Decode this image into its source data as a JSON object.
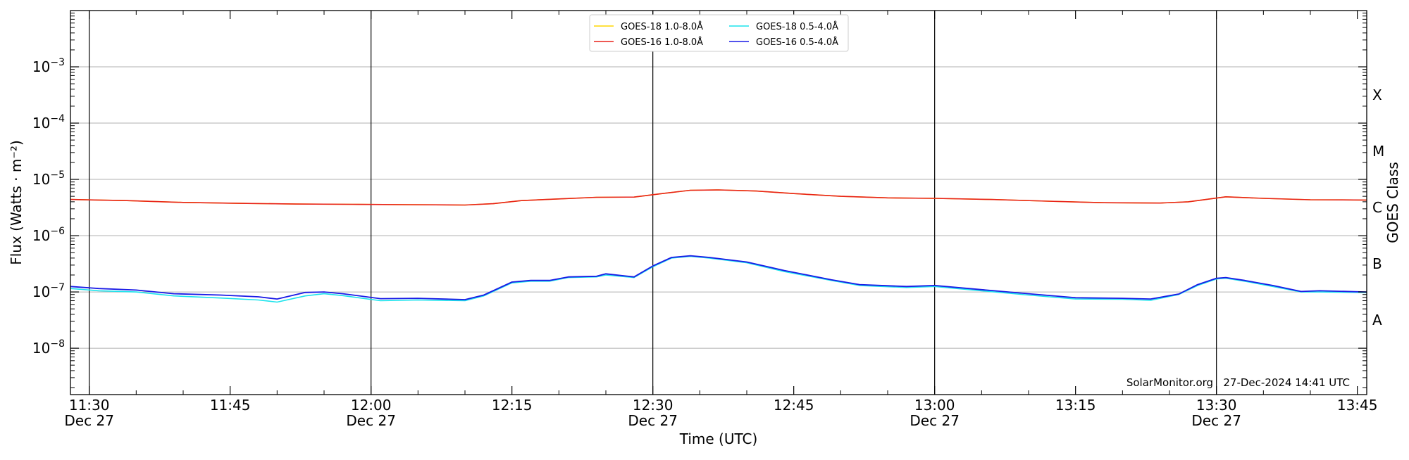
{
  "chart_data": {
    "type": "line",
    "xlabel": "Time (UTC)",
    "ylabel": "Flux (Watts · m⁻²)",
    "ylabel_right": "GOES Class",
    "y_scale": "log",
    "x_range": [
      "11:28",
      "13:46"
    ],
    "y_range": [
      1.5e-09,
      0.01
    ],
    "grid": "horizontal",
    "legend_position": "top-center",
    "x_ticks": [
      {
        "time": "11:30",
        "label": "11:30",
        "date": "Dec 27"
      },
      {
        "time": "11:45",
        "label": "11:45",
        "date": ""
      },
      {
        "time": "12:00",
        "label": "12:00",
        "date": "Dec 27"
      },
      {
        "time": "12:15",
        "label": "12:15",
        "date": ""
      },
      {
        "time": "12:30",
        "label": "12:30",
        "date": "Dec 27"
      },
      {
        "time": "12:45",
        "label": "12:45",
        "date": ""
      },
      {
        "time": "13:00",
        "label": "13:00",
        "date": "Dec 27"
      },
      {
        "time": "13:15",
        "label": "13:15",
        "date": ""
      },
      {
        "time": "13:30",
        "label": "13:30",
        "date": "Dec 27"
      },
      {
        "time": "13:45",
        "label": "13:45",
        "date": ""
      }
    ],
    "vertical_lines": [
      "11:30",
      "12:00",
      "12:30",
      "13:00",
      "13:30"
    ],
    "y_ticks": [
      {
        "value": 1e-08,
        "base": "10",
        "exp": "−8"
      },
      {
        "value": 1e-07,
        "base": "10",
        "exp": "−7"
      },
      {
        "value": 1e-06,
        "base": "10",
        "exp": "−6"
      },
      {
        "value": 1e-05,
        "base": "10",
        "exp": "−5"
      },
      {
        "value": 0.0001,
        "base": "10",
        "exp": "−4"
      },
      {
        "value": 0.001,
        "base": "10",
        "exp": "−3"
      }
    ],
    "goes_classes": [
      {
        "label": "A",
        "value": 3.16e-08
      },
      {
        "label": "B",
        "value": 3.16e-07
      },
      {
        "label": "C",
        "value": 3.16e-06
      },
      {
        "label": "M",
        "value": 3.16e-05
      },
      {
        "label": "X",
        "value": 0.000316
      }
    ],
    "credit": "SolarMonitor.org   27-Dec-2024 14:41 UTC",
    "series": [
      {
        "name": "GOES-18 1.0-8.0Å",
        "color": "#FFD700",
        "x": [
          "11:28",
          "11:34",
          "11:40",
          "11:46",
          "11:52",
          "11:58",
          "12:04",
          "12:10",
          "12:13",
          "12:16",
          "12:20",
          "12:24",
          "12:28",
          "12:31",
          "12:34",
          "12:37",
          "12:41",
          "12:45",
          "12:50",
          "12:55",
          "13:00",
          "13:06",
          "13:12",
          "13:18",
          "13:24",
          "13:27",
          "13:31",
          "13:35",
          "13:40",
          "13:46"
        ],
        "values": [
          4.4e-06,
          4.2e-06,
          3.9e-06,
          3.75e-06,
          3.65e-06,
          3.6e-06,
          3.55e-06,
          3.5e-06,
          3.7e-06,
          4.2e-06,
          4.5e-06,
          4.8e-06,
          4.85e-06,
          5.6e-06,
          6.4e-06,
          6.5e-06,
          6.2e-06,
          5.6e-06,
          5e-06,
          4.7e-06,
          4.6e-06,
          4.4e-06,
          4.1e-06,
          3.85e-06,
          3.8e-06,
          4e-06,
          4.9e-06,
          4.6e-06,
          4.35e-06,
          4.3e-06
        ]
      },
      {
        "name": "GOES-16 1.0-8.0Å",
        "color": "#E8221A",
        "x": [
          "11:28",
          "11:34",
          "11:40",
          "11:46",
          "11:52",
          "11:58",
          "12:04",
          "12:10",
          "12:13",
          "12:16",
          "12:20",
          "12:24",
          "12:28",
          "12:31",
          "12:34",
          "12:37",
          "12:41",
          "12:45",
          "12:50",
          "12:55",
          "13:00",
          "13:06",
          "13:12",
          "13:18",
          "13:24",
          "13:27",
          "13:31",
          "13:35",
          "13:40",
          "13:46"
        ],
        "values": [
          4.4e-06,
          4.2e-06,
          3.9e-06,
          3.75e-06,
          3.65e-06,
          3.6e-06,
          3.55e-06,
          3.5e-06,
          3.7e-06,
          4.2e-06,
          4.5e-06,
          4.8e-06,
          4.85e-06,
          5.6e-06,
          6.4e-06,
          6.5e-06,
          6.2e-06,
          5.6e-06,
          5e-06,
          4.7e-06,
          4.6e-06,
          4.4e-06,
          4.1e-06,
          3.85e-06,
          3.8e-06,
          4e-06,
          4.9e-06,
          4.6e-06,
          4.35e-06,
          4.3e-06
        ]
      },
      {
        "name": "GOES-18 0.5-4.0Å",
        "color": "#1BE3EC",
        "x": [
          "11:28",
          "11:31",
          "11:35",
          "11:39",
          "11:44",
          "11:48",
          "11:50",
          "11:53",
          "11:55",
          "11:57",
          "12:01",
          "12:05",
          "12:10",
          "12:12",
          "12:15",
          "12:17",
          "12:19",
          "12:21",
          "12:24",
          "12:25",
          "12:28",
          "12:30",
          "12:32",
          "12:34",
          "12:36",
          "12:40",
          "12:44",
          "12:49",
          "12:52",
          "12:57",
          "13:00",
          "13:05",
          "13:10",
          "13:15",
          "13:20",
          "13:23",
          "13:26",
          "13:28",
          "13:30",
          "13:31",
          "13:33",
          "13:36",
          "13:39",
          "13:41",
          "13:46"
        ],
        "values": [
          1.15e-07,
          1.05e-07,
          1e-07,
          8.5e-08,
          7.8e-08,
          7.2e-08,
          6.6e-08,
          8.5e-08,
          9.3e-08,
          8.6e-08,
          7e-08,
          7.2e-08,
          7e-08,
          8.5e-08,
          1.45e-07,
          1.55e-07,
          1.55e-07,
          1.8e-07,
          1.85e-07,
          2e-07,
          1.8e-07,
          2.8e-07,
          4e-07,
          4.3e-07,
          4e-07,
          3.3e-07,
          2.3e-07,
          1.6e-07,
          1.3e-07,
          1.2e-07,
          1.25e-07,
          1.05e-07,
          8.8e-08,
          7.5e-08,
          7.4e-08,
          7.1e-08,
          9e-08,
          1.3e-07,
          1.7e-07,
          1.75e-07,
          1.55e-07,
          1.25e-07,
          1e-07,
          1e-07,
          9.8e-08
        ]
      },
      {
        "name": "GOES-16 0.5-4.0Å",
        "color": "#1A1AE6",
        "x": [
          "11:28",
          "11:31",
          "11:35",
          "11:39",
          "11:44",
          "11:48",
          "11:50",
          "11:53",
          "11:55",
          "11:57",
          "12:01",
          "12:05",
          "12:10",
          "12:12",
          "12:15",
          "12:17",
          "12:19",
          "12:21",
          "12:24",
          "12:25",
          "12:28",
          "12:30",
          "12:32",
          "12:34",
          "12:36",
          "12:40",
          "12:44",
          "12:49",
          "12:52",
          "12:57",
          "13:00",
          "13:05",
          "13:10",
          "13:15",
          "13:20",
          "13:23",
          "13:26",
          "13:28",
          "13:30",
          "13:31",
          "13:33",
          "13:36",
          "13:39",
          "13:41",
          "13:46"
        ],
        "values": [
          1.25e-07,
          1.15e-07,
          1.08e-07,
          9.3e-08,
          8.8e-08,
          8.2e-08,
          7.5e-08,
          9.8e-08,
          1e-07,
          9.3e-08,
          7.6e-08,
          7.7e-08,
          7.3e-08,
          8.8e-08,
          1.5e-07,
          1.6e-07,
          1.6e-07,
          1.85e-07,
          1.9e-07,
          2.1e-07,
          1.85e-07,
          2.9e-07,
          4.1e-07,
          4.4e-07,
          4.1e-07,
          3.4e-07,
          2.4e-07,
          1.65e-07,
          1.35e-07,
          1.25e-07,
          1.3e-07,
          1.1e-07,
          9.3e-08,
          7.9e-08,
          7.7e-08,
          7.5e-08,
          9.2e-08,
          1.35e-07,
          1.75e-07,
          1.8e-07,
          1.6e-07,
          1.3e-07,
          1.02e-07,
          1.05e-07,
          1e-07
        ]
      }
    ]
  }
}
